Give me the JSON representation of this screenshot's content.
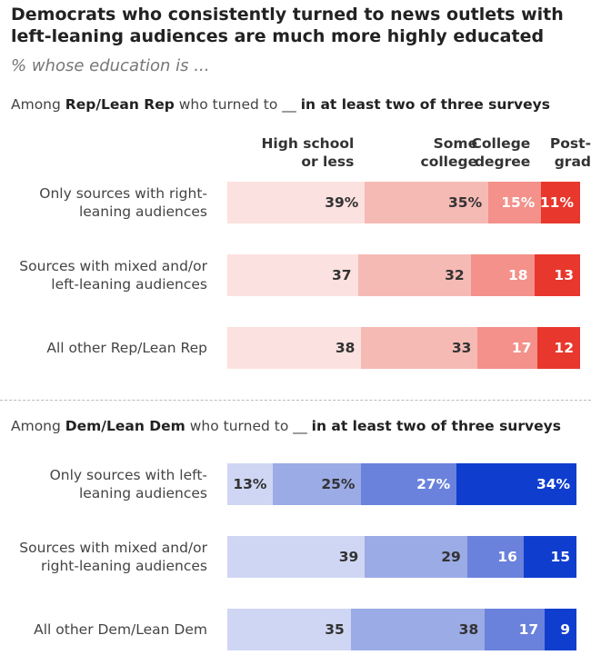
{
  "title": "Democrats who consistently turned to news outlets with left-leaning audiences are much more highly educated",
  "subtitle": "% whose education is ...",
  "chart_data": [
    {
      "type": "stacked-bar",
      "heading": [
        "Among ",
        "Rep/Lean Rep",
        " who turned to __ ",
        "in at least two of three surveys"
      ],
      "categories": [
        "Only sources with right-leaning audiences",
        "Sources with mixed and/or left-leaning audiences",
        "All other Rep/Lean Rep"
      ],
      "legend": true,
      "series": [
        {
          "name": "High school or less",
          "color": "#fbe1df",
          "values": [
            39,
            37,
            38
          ],
          "value_labels": [
            "39%",
            "37",
            "38"
          ]
        },
        {
          "name": "Some college",
          "color": "#f6bab5",
          "values": [
            35,
            32,
            33
          ],
          "value_labels": [
            "35%",
            "32",
            "33"
          ]
        },
        {
          "name": "College degree",
          "color": "#f3918a",
          "values": [
            15,
            18,
            17
          ],
          "value_labels": [
            "15%",
            "18",
            "17"
          ]
        },
        {
          "name": "Post-grad",
          "color": "#e8372c",
          "values": [
            11,
            13,
            12
          ],
          "value_labels": [
            "11%",
            "13",
            "12"
          ]
        }
      ]
    },
    {
      "type": "stacked-bar",
      "heading": [
        "Among ",
        "Dem/Lean Dem",
        " who turned to __ ",
        "in at least two of three surveys"
      ],
      "categories": [
        "Only sources with left-leaning audiences",
        "Sources with mixed and/or right-leaning audiences",
        "All other Dem/Lean Dem"
      ],
      "legend": false,
      "series": [
        {
          "color": "#cfd6f3",
          "values": [
            13,
            39,
            35
          ],
          "value_labels": [
            "13%",
            "39",
            "35"
          ]
        },
        {
          "color": "#9babe6",
          "values": [
            25,
            29,
            38
          ],
          "value_labels": [
            "25%",
            "29",
            "38"
          ]
        },
        {
          "color": "#6a82dc",
          "values": [
            27,
            16,
            17
          ],
          "value_labels": [
            "27%",
            "16",
            "17"
          ]
        },
        {
          "color": "#0f3ecf",
          "values": [
            34,
            15,
            9
          ],
          "value_labels": [
            "34%",
            "15",
            "9"
          ]
        }
      ]
    }
  ]
}
